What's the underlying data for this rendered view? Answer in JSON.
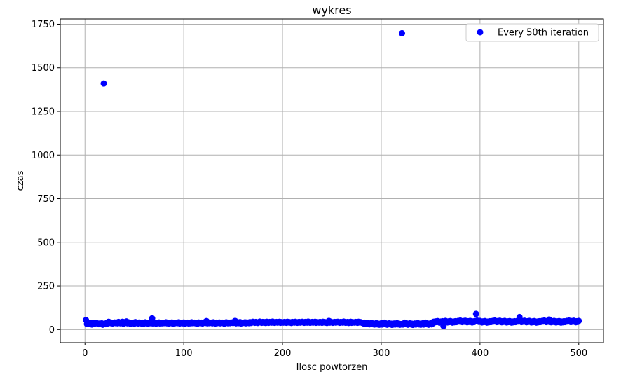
{
  "chart_data": {
    "type": "scatter",
    "title": "wykres",
    "xlabel": "Ilosc powtorzen",
    "ylabel": "czas",
    "xlim": [
      -25,
      525
    ],
    "ylim": [
      -75,
      1780
    ],
    "xticks": [
      0,
      100,
      200,
      300,
      400,
      500
    ],
    "yticks": [
      0,
      250,
      500,
      750,
      1000,
      1250,
      1500,
      1750
    ],
    "xtick_labels": [
      "0",
      "100",
      "200",
      "300",
      "400",
      "500"
    ],
    "ytick_labels": [
      "0",
      "250",
      "500",
      "750",
      "1000",
      "1250",
      "1500",
      "1750"
    ],
    "grid": true,
    "legend_position": "top-right",
    "color": "#0000ff",
    "series": [
      {
        "name": "Every 50th iteration",
        "x": [
          1,
          2,
          3,
          4,
          5,
          6,
          7,
          8,
          9,
          10,
          11,
          12,
          13,
          14,
          15,
          16,
          17,
          18,
          19,
          20,
          21,
          22,
          23,
          24,
          25,
          26,
          27,
          28,
          29,
          30,
          31,
          32,
          33,
          34,
          35,
          36,
          37,
          38,
          39,
          40,
          41,
          42,
          43,
          44,
          45,
          46,
          47,
          48,
          49,
          50,
          51,
          52,
          53,
          54,
          55,
          56,
          57,
          58,
          59,
          60,
          61,
          62,
          63,
          64,
          65,
          66,
          67,
          68,
          69,
          70,
          71,
          72,
          73,
          74,
          75,
          76,
          77,
          78,
          79,
          80,
          81,
          82,
          83,
          84,
          85,
          86,
          87,
          88,
          89,
          90,
          91,
          92,
          93,
          94,
          95,
          96,
          97,
          98,
          99,
          100,
          101,
          102,
          103,
          104,
          105,
          106,
          107,
          108,
          109,
          110,
          111,
          112,
          113,
          114,
          115,
          116,
          117,
          118,
          119,
          120,
          121,
          122,
          123,
          124,
          125,
          126,
          127,
          128,
          129,
          130,
          131,
          132,
          133,
          134,
          135,
          136,
          137,
          138,
          139,
          140,
          141,
          142,
          143,
          144,
          145,
          146,
          147,
          148,
          149,
          150,
          151,
          152,
          153,
          154,
          155,
          156,
          157,
          158,
          159,
          160,
          161,
          162,
          163,
          164,
          165,
          166,
          167,
          168,
          169,
          170,
          171,
          172,
          173,
          174,
          175,
          176,
          177,
          178,
          179,
          180,
          181,
          182,
          183,
          184,
          185,
          186,
          187,
          188,
          189,
          190,
          191,
          192,
          193,
          194,
          195,
          196,
          197,
          198,
          199,
          200,
          201,
          202,
          203,
          204,
          205,
          206,
          207,
          208,
          209,
          210,
          211,
          212,
          213,
          214,
          215,
          216,
          217,
          218,
          219,
          220,
          221,
          222,
          223,
          224,
          225,
          226,
          227,
          228,
          229,
          230,
          231,
          232,
          233,
          234,
          235,
          236,
          237,
          238,
          239,
          240,
          241,
          242,
          243,
          244,
          245,
          246,
          247,
          248,
          249,
          250,
          251,
          252,
          253,
          254,
          255,
          256,
          257,
          258,
          259,
          260,
          261,
          262,
          263,
          264,
          265,
          266,
          267,
          268,
          269,
          270,
          271,
          272,
          273,
          274,
          275,
          276,
          277,
          278,
          279,
          280,
          281,
          282,
          283,
          284,
          285,
          286,
          287,
          288,
          289,
          290,
          291,
          292,
          293,
          294,
          295,
          296,
          297,
          298,
          299,
          300,
          301,
          302,
          303,
          304,
          305,
          306,
          307,
          308,
          309,
          310,
          311,
          312,
          313,
          314,
          315,
          316,
          317,
          318,
          319,
          320,
          321,
          322,
          323,
          324,
          325,
          326,
          327,
          328,
          329,
          330,
          331,
          332,
          333,
          334,
          335,
          336,
          337,
          338,
          339,
          340,
          341,
          342,
          343,
          344,
          345,
          346,
          347,
          348,
          349,
          350,
          351,
          352,
          353,
          354,
          355,
          356,
          357,
          358,
          359,
          360,
          361,
          362,
          363,
          364,
          365,
          366,
          367,
          368,
          369,
          370,
          371,
          372,
          373,
          374,
          375,
          376,
          377,
          378,
          379,
          380,
          381,
          382,
          383,
          384,
          385,
          386,
          387,
          388,
          389,
          390,
          391,
          392,
          393,
          394,
          395,
          396,
          397,
          398,
          399,
          400,
          401,
          402,
          403,
          404,
          405,
          406,
          407,
          408,
          409,
          410,
          411,
          412,
          413,
          414,
          415,
          416,
          417,
          418,
          419,
          420,
          421,
          422,
          423,
          424,
          425,
          426,
          427,
          428,
          429,
          430,
          431,
          432,
          433,
          434,
          435,
          436,
          437,
          438,
          439,
          440,
          441,
          442,
          443,
          444,
          445,
          446,
          447,
          448,
          449,
          450,
          451,
          452,
          453,
          454,
          455,
          456,
          457,
          458,
          459,
          460,
          461,
          462,
          463,
          464,
          465,
          466,
          467,
          468,
          469,
          470,
          471,
          472,
          473,
          474,
          475,
          476,
          477,
          478,
          479,
          480,
          481,
          482,
          483,
          484,
          485,
          486,
          487,
          488,
          489,
          490,
          491,
          492,
          493,
          494,
          495,
          496,
          497,
          498,
          499,
          500
        ],
        "y": [
          55,
          32,
          40,
          35,
          38,
          34,
          29,
          40,
          32,
          35,
          39,
          36,
          35,
          31,
          35,
          32,
          36,
          28,
          1410,
          34,
          31,
          38,
          35,
          45,
          39,
          37,
          40,
          35,
          38,
          41,
          37,
          40,
          36,
          44,
          39,
          36,
          40,
          45,
          33,
          37,
          42,
          47,
          36,
          39,
          41,
          33,
          38,
          36,
          40,
          34,
          43,
          37,
          39,
          35,
          41,
          38,
          35,
          40,
          32,
          37,
          42,
          36,
          39,
          34,
          38,
          40,
          36,
          65,
          35,
          38,
          39,
          34,
          37,
          39,
          41,
          35,
          38,
          36,
          40,
          37,
          39,
          42,
          36,
          38,
          35,
          40,
          37,
          41,
          34,
          39,
          36,
          38,
          40,
          37,
          42,
          35,
          38,
          39,
          36,
          41,
          34,
          38,
          37,
          40,
          35,
          39,
          36,
          42,
          37,
          38,
          40,
          36,
          39,
          34,
          41,
          38,
          37,
          40,
          35,
          39,
          42,
          38,
          49,
          36,
          41,
          37,
          39,
          40,
          36,
          42,
          38,
          35,
          40,
          37,
          39,
          41,
          36,
          38,
          40,
          37,
          34,
          39,
          42,
          38,
          36,
          40,
          37,
          41,
          39,
          38,
          45,
          50,
          36,
          39,
          41,
          37,
          43,
          35,
          39,
          40,
          38,
          42,
          36,
          41,
          39,
          37,
          43,
          38,
          40,
          45,
          42,
          39,
          44,
          40,
          38,
          42,
          46,
          41,
          39,
          44,
          40,
          43,
          38,
          45,
          41,
          39,
          44,
          42,
          40,
          46,
          43,
          39,
          41,
          44,
          40,
          42,
          45,
          39,
          43,
          41,
          40,
          44,
          42,
          39,
          45,
          41,
          43,
          40,
          38,
          44,
          42,
          40,
          45,
          41,
          39,
          43,
          44,
          40,
          42,
          45,
          41,
          39,
          44,
          42,
          40,
          46,
          43,
          39,
          41,
          44,
          40,
          42,
          45,
          39,
          43,
          41,
          40,
          44,
          42,
          39,
          45,
          41,
          43,
          40,
          38,
          44,
          50,
          40,
          45,
          41,
          39,
          43,
          44,
          40,
          42,
          45,
          41,
          39,
          44,
          42,
          40,
          46,
          43,
          39,
          41,
          44,
          38,
          42,
          45,
          39,
          43,
          41,
          40,
          44,
          42,
          39,
          45,
          41,
          43,
          40,
          38,
          35,
          40,
          33,
          37,
          32,
          36,
          30,
          34,
          38,
          31,
          35,
          29,
          33,
          37,
          30,
          34,
          28,
          32,
          36,
          29,
          33,
          40,
          31,
          35,
          28,
          32,
          36,
          30,
          34,
          27,
          31,
          35,
          29,
          33,
          37,
          30,
          34,
          28,
          32,
          1698,
          29,
          33,
          40,
          31,
          35,
          28,
          32,
          36,
          30,
          34,
          27,
          31,
          35,
          29,
          33,
          37,
          30,
          34,
          28,
          32,
          36,
          29,
          33,
          40,
          31,
          35,
          28,
          32,
          36,
          30,
          34,
          45,
          41,
          47,
          43,
          49,
          44,
          40,
          46,
          42,
          48,
          20,
          44,
          50,
          45,
          41,
          47,
          43,
          49,
          44,
          40,
          46,
          42,
          48,
          43,
          45,
          50,
          46,
          52,
          47,
          43,
          49,
          45,
          51,
          46,
          42,
          48,
          44,
          50,
          45,
          41,
          47,
          43,
          49,
          90,
          52,
          48,
          44,
          50,
          45,
          41,
          47,
          43,
          49,
          44,
          40,
          46,
          42,
          48,
          43,
          45,
          50,
          46,
          52,
          47,
          43,
          49,
          45,
          51,
          46,
          42,
          48,
          44,
          50,
          45,
          41,
          47,
          43,
          49,
          44,
          40,
          46,
          42,
          48,
          43,
          45,
          50,
          46,
          72,
          47,
          43,
          49,
          45,
          51,
          46,
          42,
          48,
          44,
          50,
          45,
          41,
          47,
          43,
          49,
          44,
          40,
          46,
          42,
          48,
          43,
          45,
          50,
          46,
          52,
          47,
          43,
          49,
          45,
          58,
          46,
          42,
          48,
          44,
          50,
          45,
          41,
          47,
          43,
          49,
          44,
          40,
          46,
          42,
          48,
          43,
          45,
          50,
          46,
          52,
          47,
          43,
          49,
          45,
          51,
          46,
          42,
          48,
          44,
          50
        ]
      }
    ]
  }
}
